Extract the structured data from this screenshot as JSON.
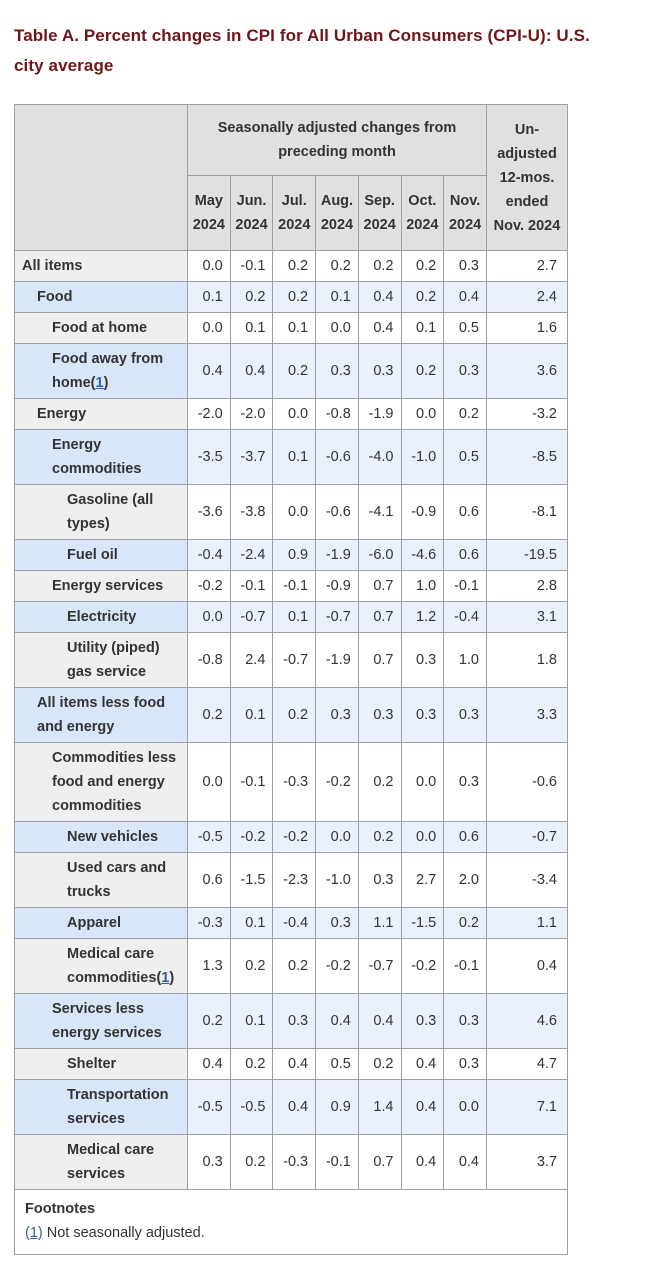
{
  "page": {
    "title": "Table A. Percent changes in CPI for All Urban Consumers (CPI-U): U.S. city average"
  },
  "table": {
    "group_header": "Seasonally adjusted changes from preceding month",
    "last_col_header": "Un-adjusted 12-mos. ended Nov. 2024",
    "month_headers": [
      "May 2024",
      "Jun. 2024",
      "Jul. 2024",
      "Aug. 2024",
      "Sep. 2024",
      "Oct. 2024",
      "Nov. 2024"
    ],
    "footnotes": {
      "heading": "Footnotes",
      "items": [
        {
          "marker": "(1)",
          "text": "Not seasonally adjusted."
        }
      ]
    }
  },
  "chart_data": {
    "type": "table",
    "title": "Table A. Percent changes in CPI for All Urban Consumers (CPI-U): U.S. city average",
    "columns": [
      "May 2024",
      "Jun. 2024",
      "Jul. 2024",
      "Aug. 2024",
      "Sep. 2024",
      "Oct. 2024",
      "Nov. 2024",
      "Un-adjusted 12-mos. ended Nov. 2024"
    ],
    "rows": [
      {
        "label": "All items",
        "indent": 0,
        "footnote_marker": null,
        "values": [
          "0.0",
          "-0.1",
          "0.2",
          "0.2",
          "0.2",
          "0.2",
          "0.3",
          "2.7"
        ]
      },
      {
        "label": "Food",
        "indent": 1,
        "footnote_marker": null,
        "values": [
          "0.1",
          "0.2",
          "0.2",
          "0.1",
          "0.4",
          "0.2",
          "0.4",
          "2.4"
        ]
      },
      {
        "label": "Food at home",
        "indent": 2,
        "footnote_marker": null,
        "values": [
          "0.0",
          "0.1",
          "0.1",
          "0.0",
          "0.4",
          "0.1",
          "0.5",
          "1.6"
        ]
      },
      {
        "label": "Food away from home",
        "indent": 2,
        "footnote_marker": "1",
        "values": [
          "0.4",
          "0.4",
          "0.2",
          "0.3",
          "0.3",
          "0.2",
          "0.3",
          "3.6"
        ]
      },
      {
        "label": "Energy",
        "indent": 1,
        "footnote_marker": null,
        "values": [
          "-2.0",
          "-2.0",
          "0.0",
          "-0.8",
          "-1.9",
          "0.0",
          "0.2",
          "-3.2"
        ]
      },
      {
        "label": "Energy commodities",
        "indent": 2,
        "footnote_marker": null,
        "values": [
          "-3.5",
          "-3.7",
          "0.1",
          "-0.6",
          "-4.0",
          "-1.0",
          "0.5",
          "-8.5"
        ]
      },
      {
        "label": "Gasoline (all types)",
        "indent": 3,
        "footnote_marker": null,
        "values": [
          "-3.6",
          "-3.8",
          "0.0",
          "-0.6",
          "-4.1",
          "-0.9",
          "0.6",
          "-8.1"
        ]
      },
      {
        "label": "Fuel oil",
        "indent": 3,
        "footnote_marker": null,
        "values": [
          "-0.4",
          "-2.4",
          "0.9",
          "-1.9",
          "-6.0",
          "-4.6",
          "0.6",
          "-19.5"
        ]
      },
      {
        "label": "Energy services",
        "indent": 2,
        "footnote_marker": null,
        "values": [
          "-0.2",
          "-0.1",
          "-0.1",
          "-0.9",
          "0.7",
          "1.0",
          "-0.1",
          "2.8"
        ]
      },
      {
        "label": "Electricity",
        "indent": 3,
        "footnote_marker": null,
        "values": [
          "0.0",
          "-0.7",
          "0.1",
          "-0.7",
          "0.7",
          "1.2",
          "-0.4",
          "3.1"
        ]
      },
      {
        "label": "Utility (piped) gas service",
        "indent": 3,
        "footnote_marker": null,
        "values": [
          "-0.8",
          "2.4",
          "-0.7",
          "-1.9",
          "0.7",
          "0.3",
          "1.0",
          "1.8"
        ]
      },
      {
        "label": "All items less food and energy",
        "indent": 1,
        "footnote_marker": null,
        "values": [
          "0.2",
          "0.1",
          "0.2",
          "0.3",
          "0.3",
          "0.3",
          "0.3",
          "3.3"
        ]
      },
      {
        "label": "Commodities less food and energy commodities",
        "indent": 2,
        "footnote_marker": null,
        "values": [
          "0.0",
          "-0.1",
          "-0.3",
          "-0.2",
          "0.2",
          "0.0",
          "0.3",
          "-0.6"
        ]
      },
      {
        "label": "New vehicles",
        "indent": 3,
        "footnote_marker": null,
        "values": [
          "-0.5",
          "-0.2",
          "-0.2",
          "0.0",
          "0.2",
          "0.0",
          "0.6",
          "-0.7"
        ]
      },
      {
        "label": "Used cars and trucks",
        "indent": 3,
        "footnote_marker": null,
        "values": [
          "0.6",
          "-1.5",
          "-2.3",
          "-1.0",
          "0.3",
          "2.7",
          "2.0",
          "-3.4"
        ]
      },
      {
        "label": "Apparel",
        "indent": 3,
        "footnote_marker": null,
        "values": [
          "-0.3",
          "0.1",
          "-0.4",
          "0.3",
          "1.1",
          "-1.5",
          "0.2",
          "1.1"
        ]
      },
      {
        "label": "Medical care commodities",
        "indent": 3,
        "footnote_marker": "1",
        "values": [
          "1.3",
          "0.2",
          "0.2",
          "-0.2",
          "-0.7",
          "-0.2",
          "-0.1",
          "0.4"
        ]
      },
      {
        "label": "Services less energy services",
        "indent": 2,
        "footnote_marker": null,
        "values": [
          "0.2",
          "0.1",
          "0.3",
          "0.4",
          "0.4",
          "0.3",
          "0.3",
          "4.6"
        ]
      },
      {
        "label": "Shelter",
        "indent": 3,
        "footnote_marker": null,
        "values": [
          "0.4",
          "0.2",
          "0.4",
          "0.5",
          "0.2",
          "0.4",
          "0.3",
          "4.7"
        ]
      },
      {
        "label": "Transportation services",
        "indent": 3,
        "footnote_marker": null,
        "values": [
          "-0.5",
          "-0.5",
          "0.4",
          "0.9",
          "1.4",
          "0.4",
          "0.0",
          "7.1"
        ]
      },
      {
        "label": "Medical care services",
        "indent": 3,
        "footnote_marker": null,
        "values": [
          "0.3",
          "0.2",
          "-0.3",
          "-0.1",
          "0.7",
          "0.4",
          "0.4",
          "3.7"
        ]
      }
    ]
  },
  "colors": {
    "title_text": "#701618",
    "body_text": "#333333",
    "header_bg": "#e0e0e0",
    "row_label_grey": "#efefef",
    "row_label_blue": "#d9e6f9",
    "row_data_blue": "#ebf1fc",
    "row_data_white": "#ffffff",
    "border": "#9aa0a6",
    "link": "#2e5fa3"
  }
}
